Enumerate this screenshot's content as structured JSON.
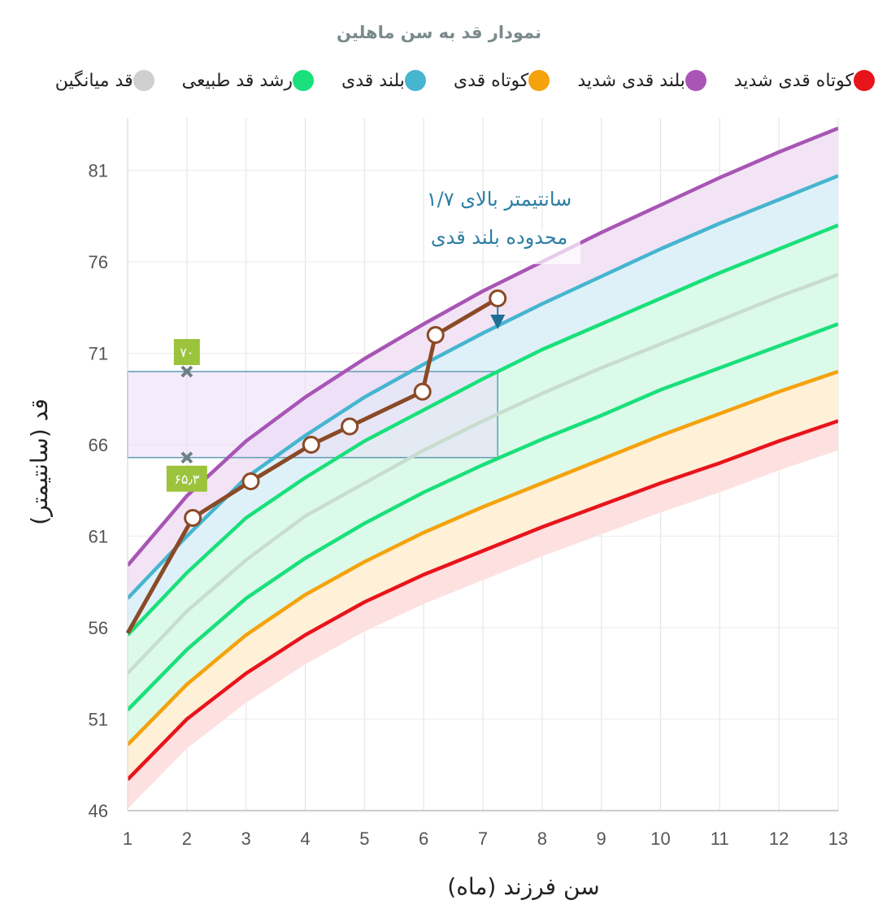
{
  "chart_data": {
    "type": "line",
    "title": "نمودار قد به سن ماهلین",
    "xlabel": "سن فرزند (ماه)",
    "ylabel": "قد (سانتیمتر)",
    "xlim": [
      1,
      13
    ],
    "ylim": [
      46,
      84
    ],
    "x_ticks": [
      1,
      2,
      3,
      4,
      5,
      6,
      7,
      8,
      9,
      10,
      11,
      12,
      13
    ],
    "y_ticks": [
      46,
      51,
      56,
      61,
      66,
      71,
      76,
      81
    ],
    "grid": true,
    "x": [
      1,
      2,
      3,
      4,
      5,
      6,
      7,
      8,
      9,
      10,
      11,
      12,
      13
    ],
    "legend": [
      {
        "label": "کوتاه قدی شدید",
        "color": "#e8141b"
      },
      {
        "label": "بلند قدی شدید",
        "color": "#a855b5"
      },
      {
        "label": "کوتاه قدی",
        "color": "#f5a20c"
      },
      {
        "label": "بلند قدی",
        "color": "#45b5d0"
      },
      {
        "label": "رشد قد طبیعی",
        "color": "#19e07a"
      },
      {
        "label": "قد میانگین",
        "color": "#cfcfcf"
      }
    ],
    "series": [
      {
        "name": "کوتاه قدی شدید",
        "color": "#e8141b",
        "fill": "#fde0e0",
        "values": [
          47.7,
          51.0,
          53.5,
          55.6,
          57.4,
          58.9,
          60.2,
          61.5,
          62.7,
          63.9,
          65.0,
          66.2,
          67.3
        ]
      },
      {
        "name": "کوتاه قدی",
        "color": "#f5a20c",
        "fill": "#fff0d8",
        "values": [
          49.6,
          52.9,
          55.6,
          57.8,
          59.6,
          61.2,
          62.6,
          63.9,
          65.2,
          66.5,
          67.7,
          68.9,
          70.0
        ]
      },
      {
        "name": "رشد قد طبیعی - پایین",
        "color": "#19e07a",
        "fill": "#dcfaea",
        "values": [
          51.5,
          54.8,
          57.6,
          59.8,
          61.7,
          63.4,
          64.9,
          66.3,
          67.6,
          69.0,
          70.2,
          71.4,
          72.6
        ]
      },
      {
        "name": "قد میانگین",
        "color": "#c8ddd0",
        "fill": "#dcfaea",
        "values": [
          53.5,
          56.9,
          59.7,
          62.1,
          63.9,
          65.7,
          67.3,
          68.8,
          70.2,
          71.5,
          72.8,
          74.1,
          75.3
        ]
      },
      {
        "name": "رشد قد طبیعی - بالا",
        "color": "#19e07a",
        "fill": "#dcfaea",
        "values": [
          55.6,
          59.0,
          62.0,
          64.2,
          66.2,
          67.9,
          69.6,
          71.2,
          72.6,
          74.0,
          75.4,
          76.7,
          78.0
        ]
      },
      {
        "name": "بلند قدی",
        "color": "#45b5d0",
        "fill": "#dff1f8",
        "values": [
          57.6,
          61.0,
          64.2,
          66.5,
          68.6,
          70.4,
          72.1,
          73.7,
          75.2,
          76.7,
          78.1,
          79.4,
          80.7
        ]
      },
      {
        "name": "بلند قدی شدید",
        "color": "#a855b5",
        "fill": "#f2e4f5",
        "values": [
          59.4,
          63.2,
          66.2,
          68.6,
          70.7,
          72.6,
          74.4,
          76.0,
          77.6,
          79.1,
          80.6,
          82.0,
          83.3
        ]
      }
    ],
    "child_height": {
      "name": "قد ماهلین",
      "color": "#8a4a26",
      "points": [
        {
          "x": 1,
          "y": 55.7
        },
        {
          "x": 2.1,
          "y": 62.0
        },
        {
          "x": 3.08,
          "y": 64.0
        },
        {
          "x": 4.1,
          "y": 66.0
        },
        {
          "x": 4.75,
          "y": 67.0
        },
        {
          "x": 5.98,
          "y": 68.9
        },
        {
          "x": 6.2,
          "y": 72.0
        },
        {
          "x": 7.25,
          "y": 74.0
        }
      ]
    },
    "range_box": {
      "x_from": 1,
      "x_to": 7.25,
      "y_from": 65.3,
      "y_to": 70.0
    },
    "range_markers": [
      {
        "x": 2,
        "y": 70.0,
        "label": "۷۰"
      },
      {
        "x": 2,
        "y": 65.3,
        "label": "۶۵٫۳"
      }
    ],
    "annotation": {
      "line1": "۱/۷ سانتیمتر بالای",
      "line2": "محدوده بلند قدی",
      "point_x": 7.25,
      "point_y": 74.0
    }
  }
}
